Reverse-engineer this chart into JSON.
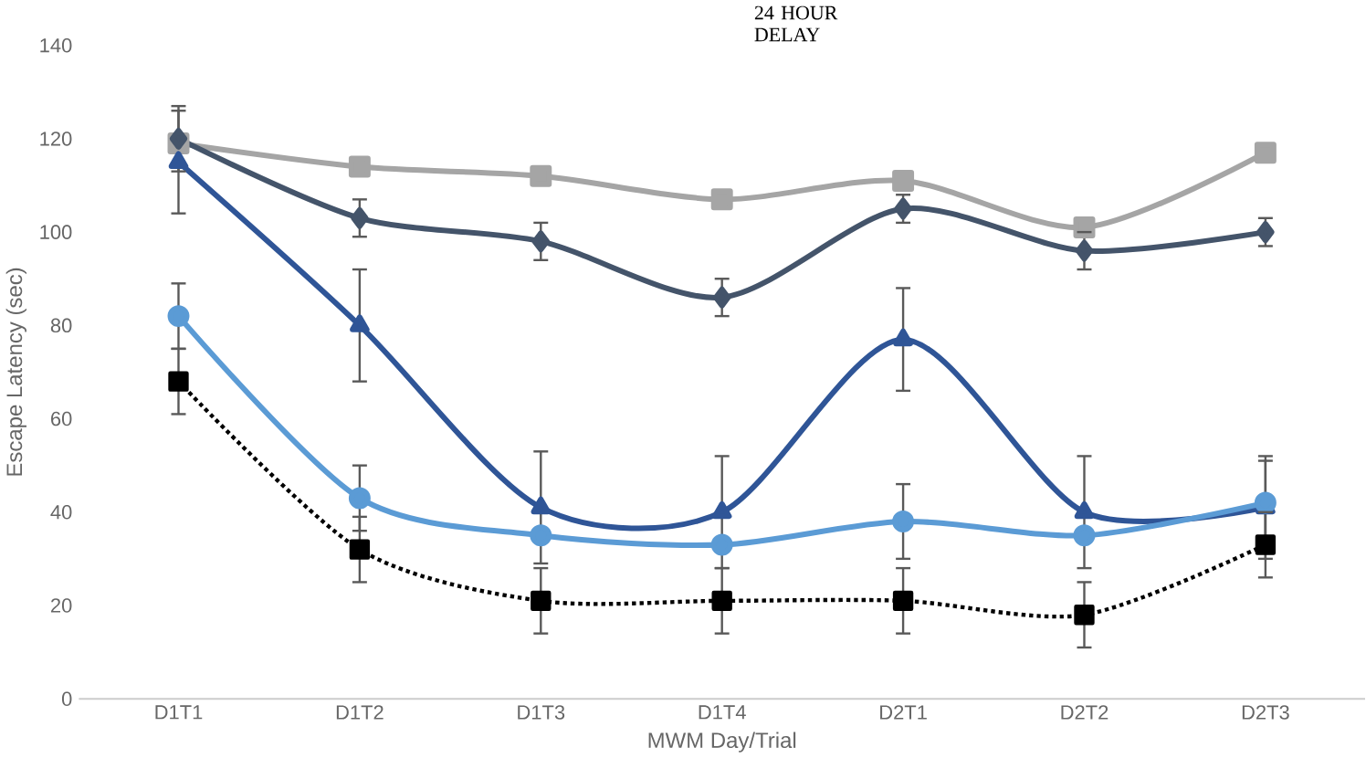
{
  "chart_data": {
    "type": "line",
    "xlabel": "MWM Day/Trial",
    "ylabel": "Escape Latency (sec)",
    "categories": [
      "D1T1",
      "D1T2",
      "D1T3",
      "D1T4",
      "D2T1",
      "D2T2",
      "D2T3"
    ],
    "ylim": [
      0,
      140
    ],
    "yticks": [
      0,
      20,
      40,
      60,
      80,
      100,
      120,
      140
    ],
    "annotations": [
      "24 HOUR DELAY"
    ],
    "series": [
      {
        "color": "#a5a5a5",
        "marker": "square",
        "line_style": "solid",
        "values": [
          119,
          114,
          112,
          107,
          111,
          101,
          117
        ]
      },
      {
        "color": "#44546a",
        "marker": "diamond",
        "line_style": "solid",
        "values": [
          120,
          103,
          98,
          86,
          105,
          96,
          100
        ],
        "errors": [
          7,
          4,
          4,
          4,
          3,
          4,
          3
        ]
      },
      {
        "color": "#2f5597",
        "marker": "triangle",
        "line_style": "solid",
        "values": [
          115,
          80,
          41,
          40,
          77,
          40,
          41
        ],
        "errors": [
          11,
          12,
          12,
          12,
          11,
          12,
          11
        ]
      },
      {
        "color": "#5b9bd5",
        "marker": "circle",
        "line_style": "solid",
        "values": [
          82,
          43,
          35,
          33,
          38,
          35,
          42
        ],
        "errors": [
          7,
          7,
          null,
          null,
          8,
          null,
          9
        ]
      },
      {
        "color": "#000000",
        "marker": "square",
        "line_style": "dotted",
        "values": [
          68,
          32,
          21,
          21,
          21,
          18,
          33
        ],
        "errors": [
          7,
          7,
          7,
          7,
          7,
          7,
          7
        ]
      }
    ]
  }
}
